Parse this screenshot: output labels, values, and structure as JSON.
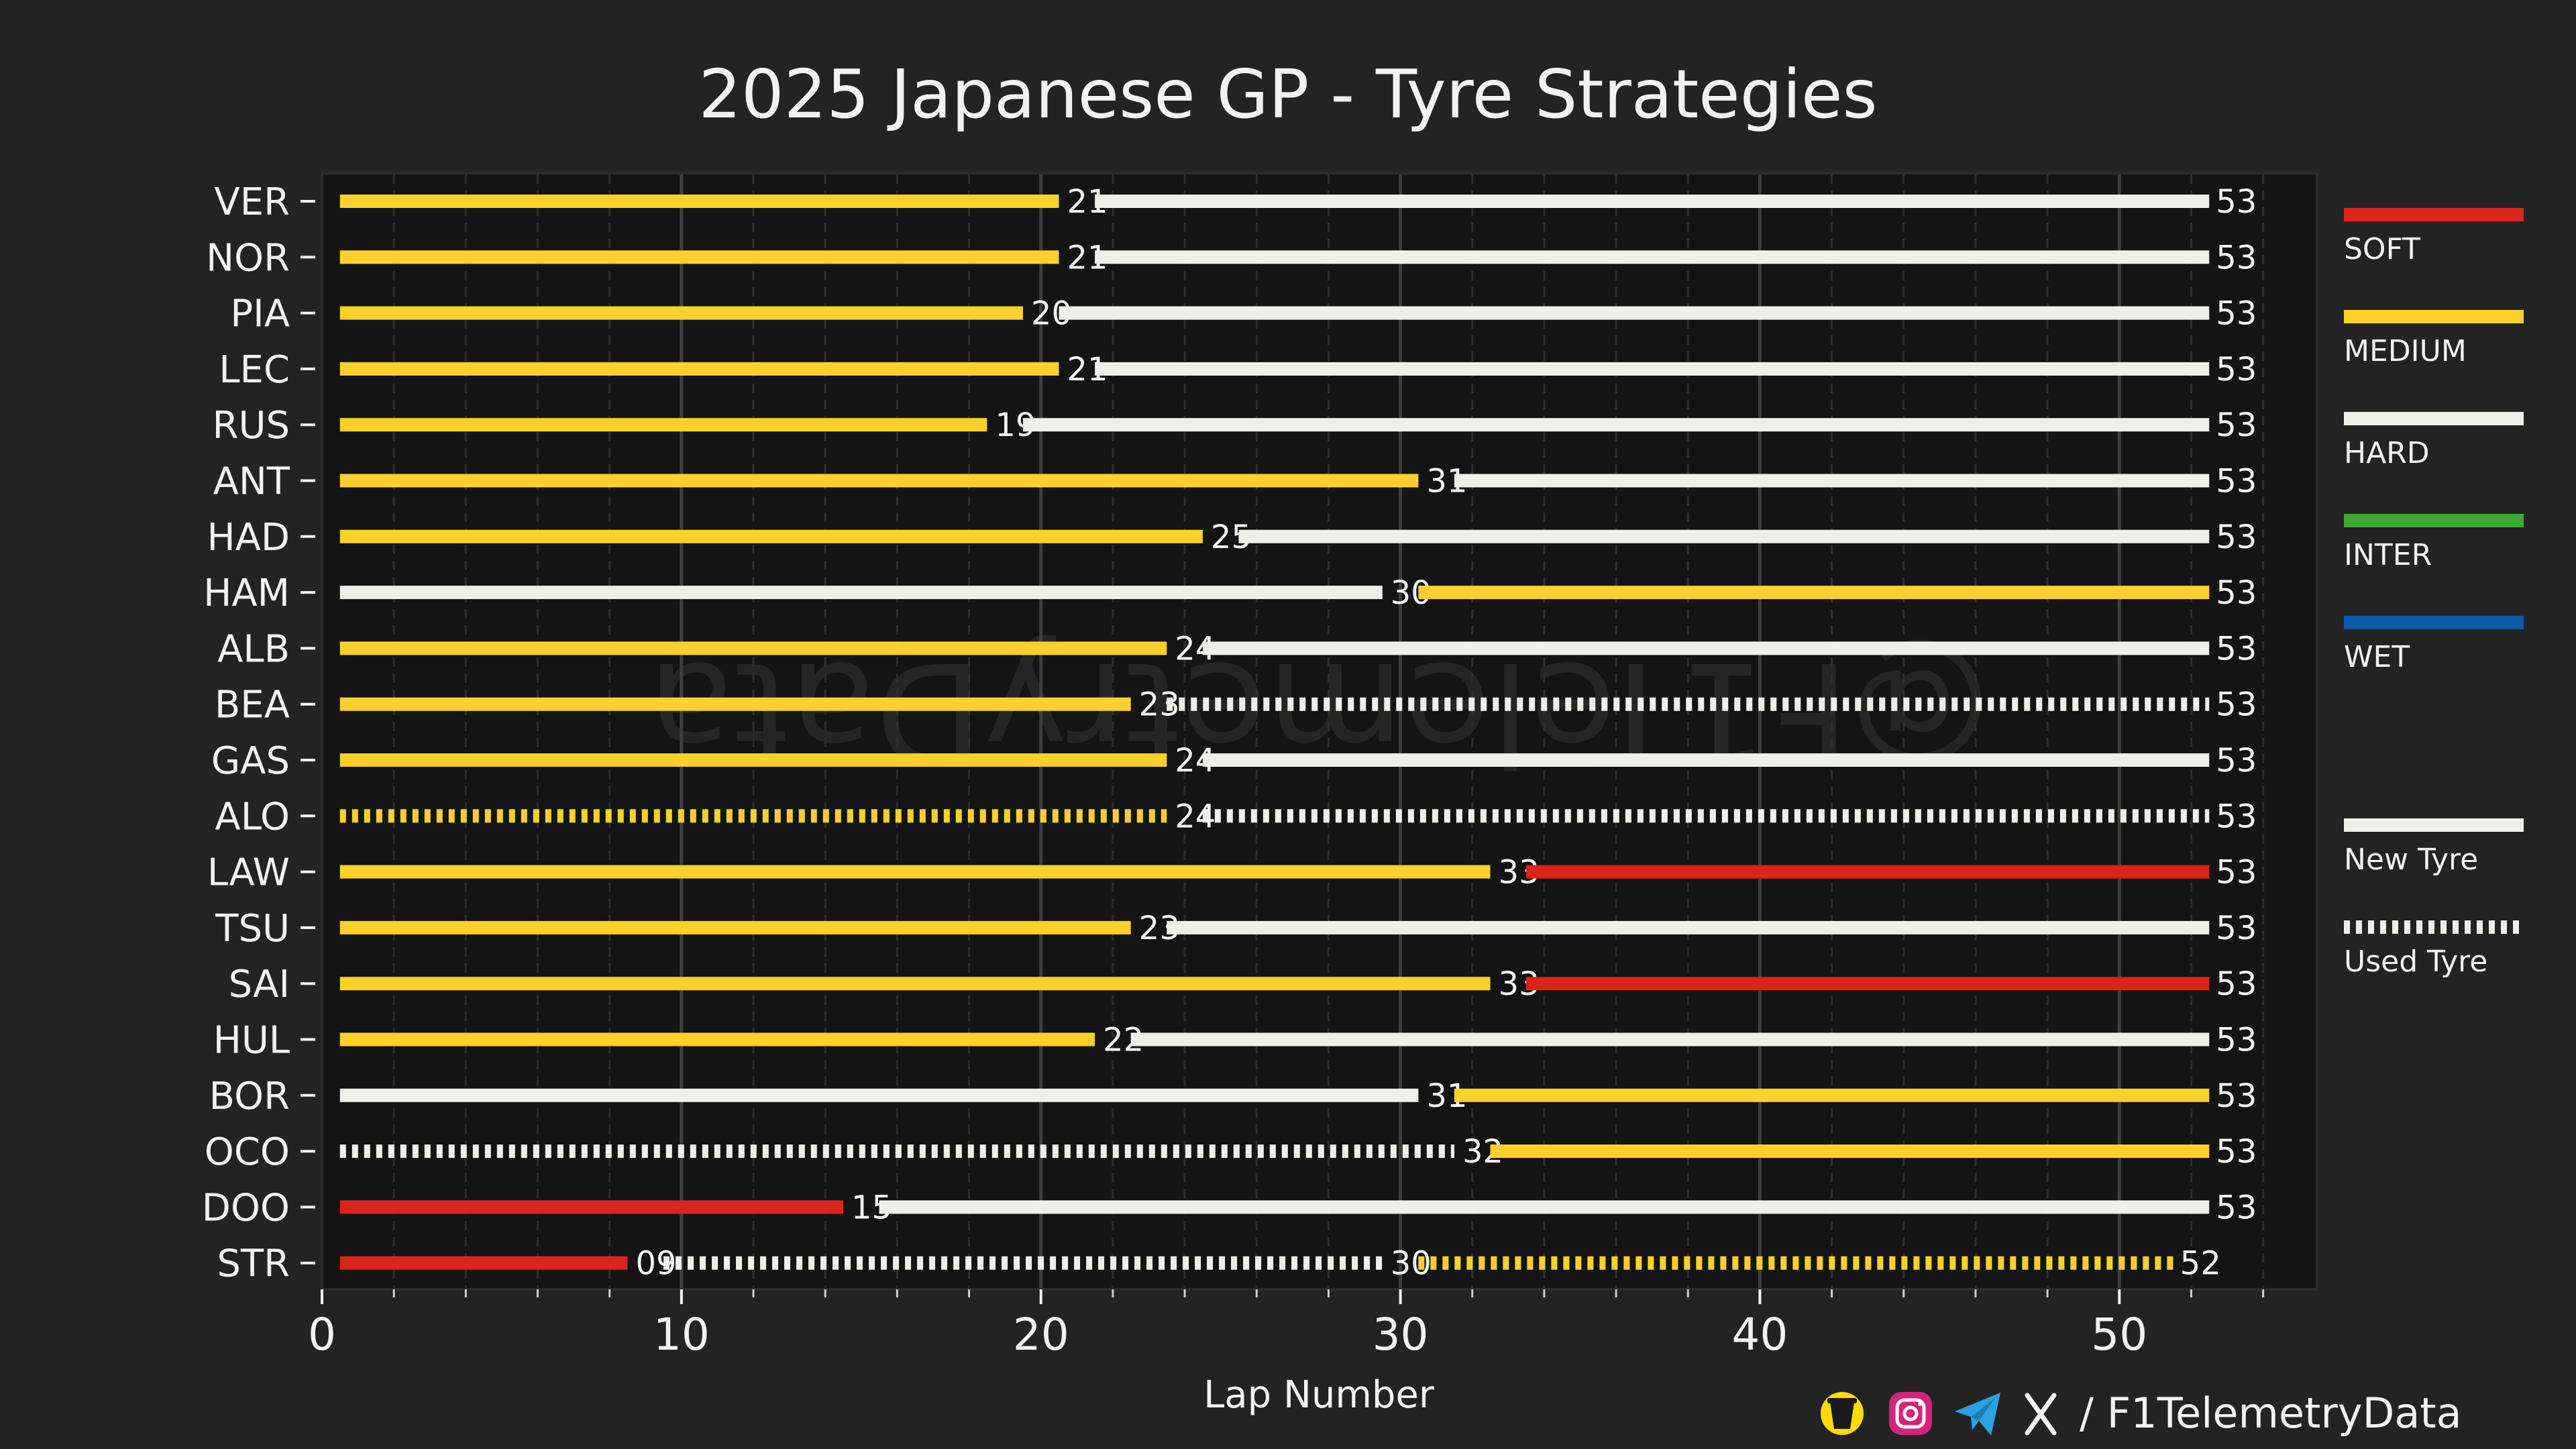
{
  "chart_data": {
    "type": "bar",
    "title": "2025 Japanese GP - Tyre Strategies",
    "xlabel": "Lap Number",
    "ylabel": "",
    "xlim": [
      0,
      55.5
    ],
    "xticks": [
      "0",
      "10",
      "20",
      "30",
      "40",
      "50"
    ],
    "grid": "vertical",
    "legend_position": "right",
    "colors": {
      "SOFT": "#d9251c",
      "MEDIUM": "#fdd02b",
      "HARD": "#efefea",
      "INTER": "#3aaa2c",
      "WET": "#0d5aa8",
      "plot_bg": "#141414",
      "page_bg": "#232323",
      "text": "#f2f2f2"
    },
    "legend": [
      {
        "label": "SOFT",
        "compound": "SOFT",
        "style": "new"
      },
      {
        "label": "MEDIUM",
        "compound": "MEDIUM",
        "style": "new"
      },
      {
        "label": "HARD",
        "compound": "HARD",
        "style": "new"
      },
      {
        "label": "INTER",
        "compound": "INTER",
        "style": "new"
      },
      {
        "label": "WET",
        "compound": "WET",
        "style": "new"
      },
      {
        "label": "New Tyre",
        "compound": "HARD",
        "style": "new"
      },
      {
        "label": "Used Tyre",
        "compound": "HARD",
        "style": "used"
      }
    ],
    "drivers": [
      {
        "name": "VER",
        "stints": [
          {
            "compound": "MEDIUM",
            "used": false,
            "start": 0,
            "end": 21,
            "label": "21"
          },
          {
            "compound": "HARD",
            "used": false,
            "start": 21,
            "end": 53,
            "label": "53"
          }
        ]
      },
      {
        "name": "NOR",
        "stints": [
          {
            "compound": "MEDIUM",
            "used": false,
            "start": 0,
            "end": 21,
            "label": "21"
          },
          {
            "compound": "HARD",
            "used": false,
            "start": 21,
            "end": 53,
            "label": "53"
          }
        ]
      },
      {
        "name": "PIA",
        "stints": [
          {
            "compound": "MEDIUM",
            "used": false,
            "start": 0,
            "end": 20,
            "label": "20"
          },
          {
            "compound": "HARD",
            "used": false,
            "start": 20,
            "end": 53,
            "label": "53"
          }
        ]
      },
      {
        "name": "LEC",
        "stints": [
          {
            "compound": "MEDIUM",
            "used": false,
            "start": 0,
            "end": 21,
            "label": "21"
          },
          {
            "compound": "HARD",
            "used": false,
            "start": 21,
            "end": 53,
            "label": "53"
          }
        ]
      },
      {
        "name": "RUS",
        "stints": [
          {
            "compound": "MEDIUM",
            "used": false,
            "start": 0,
            "end": 19,
            "label": "19"
          },
          {
            "compound": "HARD",
            "used": false,
            "start": 19,
            "end": 53,
            "label": "53"
          }
        ]
      },
      {
        "name": "ANT",
        "stints": [
          {
            "compound": "MEDIUM",
            "used": false,
            "start": 0,
            "end": 31,
            "label": "31"
          },
          {
            "compound": "HARD",
            "used": false,
            "start": 31,
            "end": 53,
            "label": "53"
          }
        ]
      },
      {
        "name": "HAD",
        "stints": [
          {
            "compound": "MEDIUM",
            "used": false,
            "start": 0,
            "end": 25,
            "label": "25"
          },
          {
            "compound": "HARD",
            "used": false,
            "start": 25,
            "end": 53,
            "label": "53"
          }
        ]
      },
      {
        "name": "HAM",
        "stints": [
          {
            "compound": "HARD",
            "used": false,
            "start": 0,
            "end": 30,
            "label": "30"
          },
          {
            "compound": "MEDIUM",
            "used": false,
            "start": 30,
            "end": 53,
            "label": "53"
          }
        ]
      },
      {
        "name": "ALB",
        "stints": [
          {
            "compound": "MEDIUM",
            "used": false,
            "start": 0,
            "end": 24,
            "label": "24"
          },
          {
            "compound": "HARD",
            "used": false,
            "start": 24,
            "end": 53,
            "label": "53"
          }
        ]
      },
      {
        "name": "BEA",
        "stints": [
          {
            "compound": "MEDIUM",
            "used": false,
            "start": 0,
            "end": 23,
            "label": "23"
          },
          {
            "compound": "HARD",
            "used": true,
            "start": 23,
            "end": 53,
            "label": "53"
          }
        ]
      },
      {
        "name": "GAS",
        "stints": [
          {
            "compound": "MEDIUM",
            "used": false,
            "start": 0,
            "end": 24,
            "label": "24"
          },
          {
            "compound": "HARD",
            "used": false,
            "start": 24,
            "end": 53,
            "label": "53"
          }
        ]
      },
      {
        "name": "ALO",
        "stints": [
          {
            "compound": "MEDIUM",
            "used": true,
            "start": 0,
            "end": 24,
            "label": "24"
          },
          {
            "compound": "HARD",
            "used": true,
            "start": 24,
            "end": 53,
            "label": "53"
          }
        ]
      },
      {
        "name": "LAW",
        "stints": [
          {
            "compound": "MEDIUM",
            "used": false,
            "start": 0,
            "end": 33,
            "label": "33"
          },
          {
            "compound": "SOFT",
            "used": false,
            "start": 33,
            "end": 53,
            "label": "53"
          }
        ]
      },
      {
        "name": "TSU",
        "stints": [
          {
            "compound": "MEDIUM",
            "used": false,
            "start": 0,
            "end": 23,
            "label": "23"
          },
          {
            "compound": "HARD",
            "used": false,
            "start": 23,
            "end": 53,
            "label": "53"
          }
        ]
      },
      {
        "name": "SAI",
        "stints": [
          {
            "compound": "MEDIUM",
            "used": false,
            "start": 0,
            "end": 33,
            "label": "33"
          },
          {
            "compound": "SOFT",
            "used": false,
            "start": 33,
            "end": 53,
            "label": "53"
          }
        ]
      },
      {
        "name": "HUL",
        "stints": [
          {
            "compound": "MEDIUM",
            "used": false,
            "start": 0,
            "end": 22,
            "label": "22"
          },
          {
            "compound": "HARD",
            "used": false,
            "start": 22,
            "end": 53,
            "label": "53"
          }
        ]
      },
      {
        "name": "BOR",
        "stints": [
          {
            "compound": "HARD",
            "used": false,
            "start": 0,
            "end": 31,
            "label": "31"
          },
          {
            "compound": "MEDIUM",
            "used": false,
            "start": 31,
            "end": 53,
            "label": "53"
          }
        ]
      },
      {
        "name": "OCO",
        "stints": [
          {
            "compound": "HARD",
            "used": true,
            "start": 0,
            "end": 32,
            "label": "32"
          },
          {
            "compound": "MEDIUM",
            "used": false,
            "start": 32,
            "end": 53,
            "label": "53"
          }
        ]
      },
      {
        "name": "DOO",
        "stints": [
          {
            "compound": "SOFT",
            "used": false,
            "start": 0,
            "end": 15,
            "label": "15"
          },
          {
            "compound": "HARD",
            "used": false,
            "start": 15,
            "end": 53,
            "label": "53"
          }
        ]
      },
      {
        "name": "STR",
        "stints": [
          {
            "compound": "SOFT",
            "used": false,
            "start": 0,
            "end": 9,
            "label": "09"
          },
          {
            "compound": "HARD",
            "used": true,
            "start": 9,
            "end": 30,
            "label": "30"
          },
          {
            "compound": "MEDIUM",
            "used": true,
            "start": 30,
            "end": 52,
            "label": "52"
          }
        ]
      }
    ]
  },
  "watermark": "@F1TelemetryData",
  "footer": {
    "handle": "/ F1TelemetryData",
    "icons": [
      "buy-me-a-coffee-icon",
      "instagram-icon",
      "telegram-icon",
      "x-icon"
    ]
  }
}
